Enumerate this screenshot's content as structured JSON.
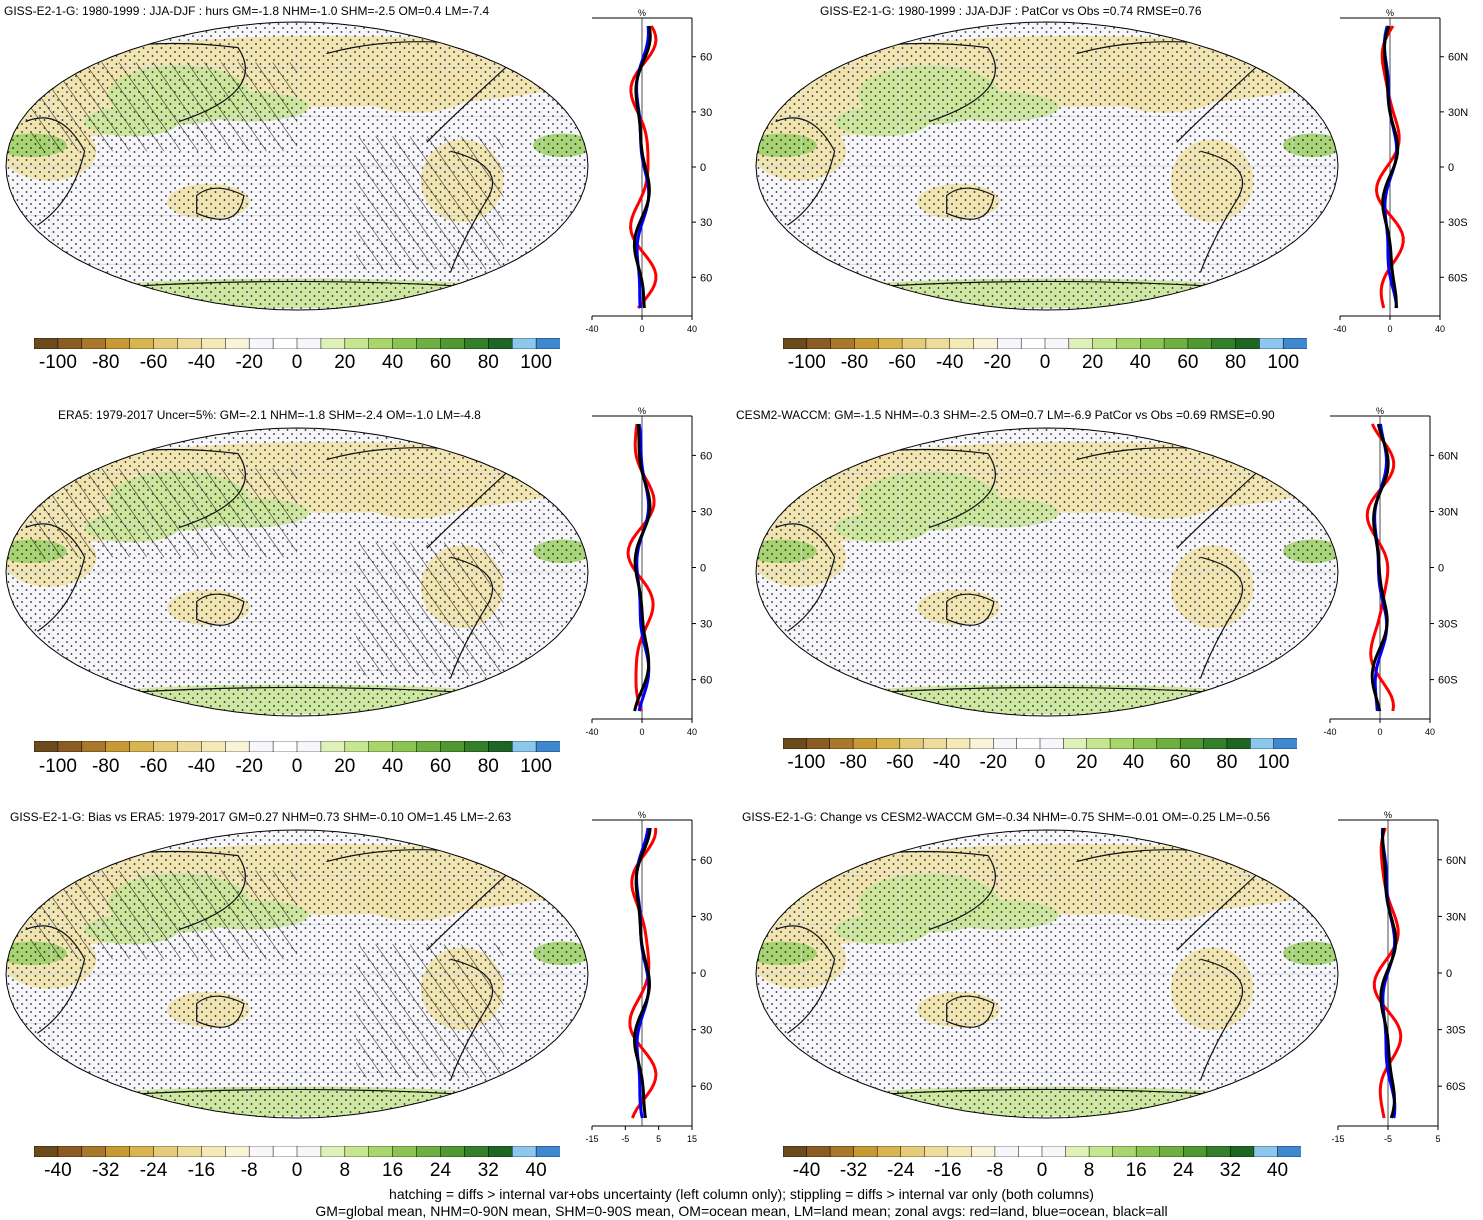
{
  "panels": [
    {
      "title": "GISS-E2-1-G: 1980-1999 : JJA-DJF : hurs GM=-1.8 NHM=-1.0 SHM=-2.5 OM=0.4 LM=-7.4",
      "colorbar_labels": [
        "-100",
        "-80",
        "-60",
        "-40",
        "-20",
        "0",
        "20",
        "40",
        "60",
        "80",
        "100"
      ],
      "zonal_xticks": [
        "-40",
        "0",
        "40"
      ],
      "zonal_units": "%",
      "zonal_lat_labels": [
        "60N",
        "30N",
        "0",
        "30S",
        "60S"
      ],
      "hatching": true
    },
    {
      "title": "GISS-E2-1-G: 1980-1999 : JJA-DJF : PatCor vs Obs =0.74 RMSE=0.76",
      "colorbar_labels": [
        "-100",
        "-80",
        "-60",
        "-40",
        "-20",
        "0",
        "20",
        "40",
        "60",
        "80",
        "100"
      ],
      "zonal_xticks": [
        "-40",
        "0",
        "40"
      ],
      "zonal_units": "%",
      "zonal_lat_labels": [
        "60N",
        "30N",
        "0",
        "30S",
        "60S"
      ],
      "hatching": false
    },
    {
      "title": "ERA5: 1979-2017 Uncer=5%: GM=-2.1 NHM=-1.8 SHM=-2.4 OM=-1.0 LM=-4.8",
      "colorbar_labels": [
        "-100",
        "-80",
        "-60",
        "-40",
        "-20",
        "0",
        "20",
        "40",
        "60",
        "80",
        "100"
      ],
      "zonal_xticks": [
        "-40",
        "0",
        "40"
      ],
      "zonal_units": "%",
      "zonal_lat_labels": [
        "60N",
        "30N",
        "0",
        "30S",
        "60S"
      ],
      "hatching": true
    },
    {
      "title": "CESM2-WACCM: GM=-1.5 NHM=-0.3 SHM=-2.5 OM=0.7 LM=-6.9 PatCor vs Obs =0.69 RMSE=0.90",
      "colorbar_labels": [
        "-100",
        "-80",
        "-60",
        "-40",
        "-20",
        "0",
        "20",
        "40",
        "60",
        "80",
        "100"
      ],
      "zonal_xticks": [
        "-40",
        "0",
        "40"
      ],
      "zonal_units": "%",
      "zonal_lat_labels": [
        "60N",
        "30N",
        "0",
        "30S",
        "60S"
      ],
      "hatching": false
    },
    {
      "title": "GISS-E2-1-G: Bias vs ERA5: 1979-2017 GM=0.27 NHM=0.73 SHM=-0.10 OM=1.45 LM=-2.63",
      "colorbar_labels": [
        "-40",
        "-32",
        "-24",
        "-16",
        "-8",
        "0",
        "8",
        "16",
        "24",
        "32",
        "40"
      ],
      "zonal_xticks": [
        "-15",
        "-5",
        "5",
        "15"
      ],
      "zonal_units": "%",
      "zonal_lat_labels": [
        "60N",
        "30N",
        "0",
        "30S",
        "60S"
      ],
      "hatching": true
    },
    {
      "title": "GISS-E2-1-G: Change vs CESM2-WACCM GM=-0.34 NHM=-0.75 SHM=-0.01 OM=-0.25 LM=-0.56",
      "colorbar_labels": [
        "-40",
        "-32",
        "-24",
        "-16",
        "-8",
        "0",
        "8",
        "16",
        "24",
        "32",
        "40"
      ],
      "zonal_xticks": [
        "-15",
        "-5",
        "5"
      ],
      "zonal_units": "%",
      "zonal_lat_labels": [
        "60N",
        "30N",
        "0",
        "30S",
        "60S"
      ],
      "hatching": false
    }
  ],
  "colors": {
    "colorbar": [
      "#6b4a1c",
      "#8a5c24",
      "#a8782c",
      "#c89a36",
      "#d9b552",
      "#e6cc7a",
      "#eedc9c",
      "#f4eab8",
      "#f9f3d8",
      "#f7f7fb",
      "#ffffff",
      "#f7f7fb",
      "#dff0b8",
      "#c6e690",
      "#a9d66c",
      "#8cc454",
      "#6fae40",
      "#4f9832",
      "#347f2a",
      "#1f6624",
      "#8cc8ee",
      "#3f88cf"
    ],
    "land_line": "#111111",
    "zonal_land": "#ff0000",
    "zonal_ocean": "#0000ff",
    "zonal_all": "#000000"
  },
  "footer": {
    "line1": "hatching = diffs > internal var+obs uncertainty (left column only); stippling = diffs > internal var only (both columns)",
    "line2": "GM=global mean, NHM=0-90N mean, SHM=0-90S mean, OM=ocean mean, LM=land mean; zonal avgs: red=land, blue=ocean, black=all"
  }
}
